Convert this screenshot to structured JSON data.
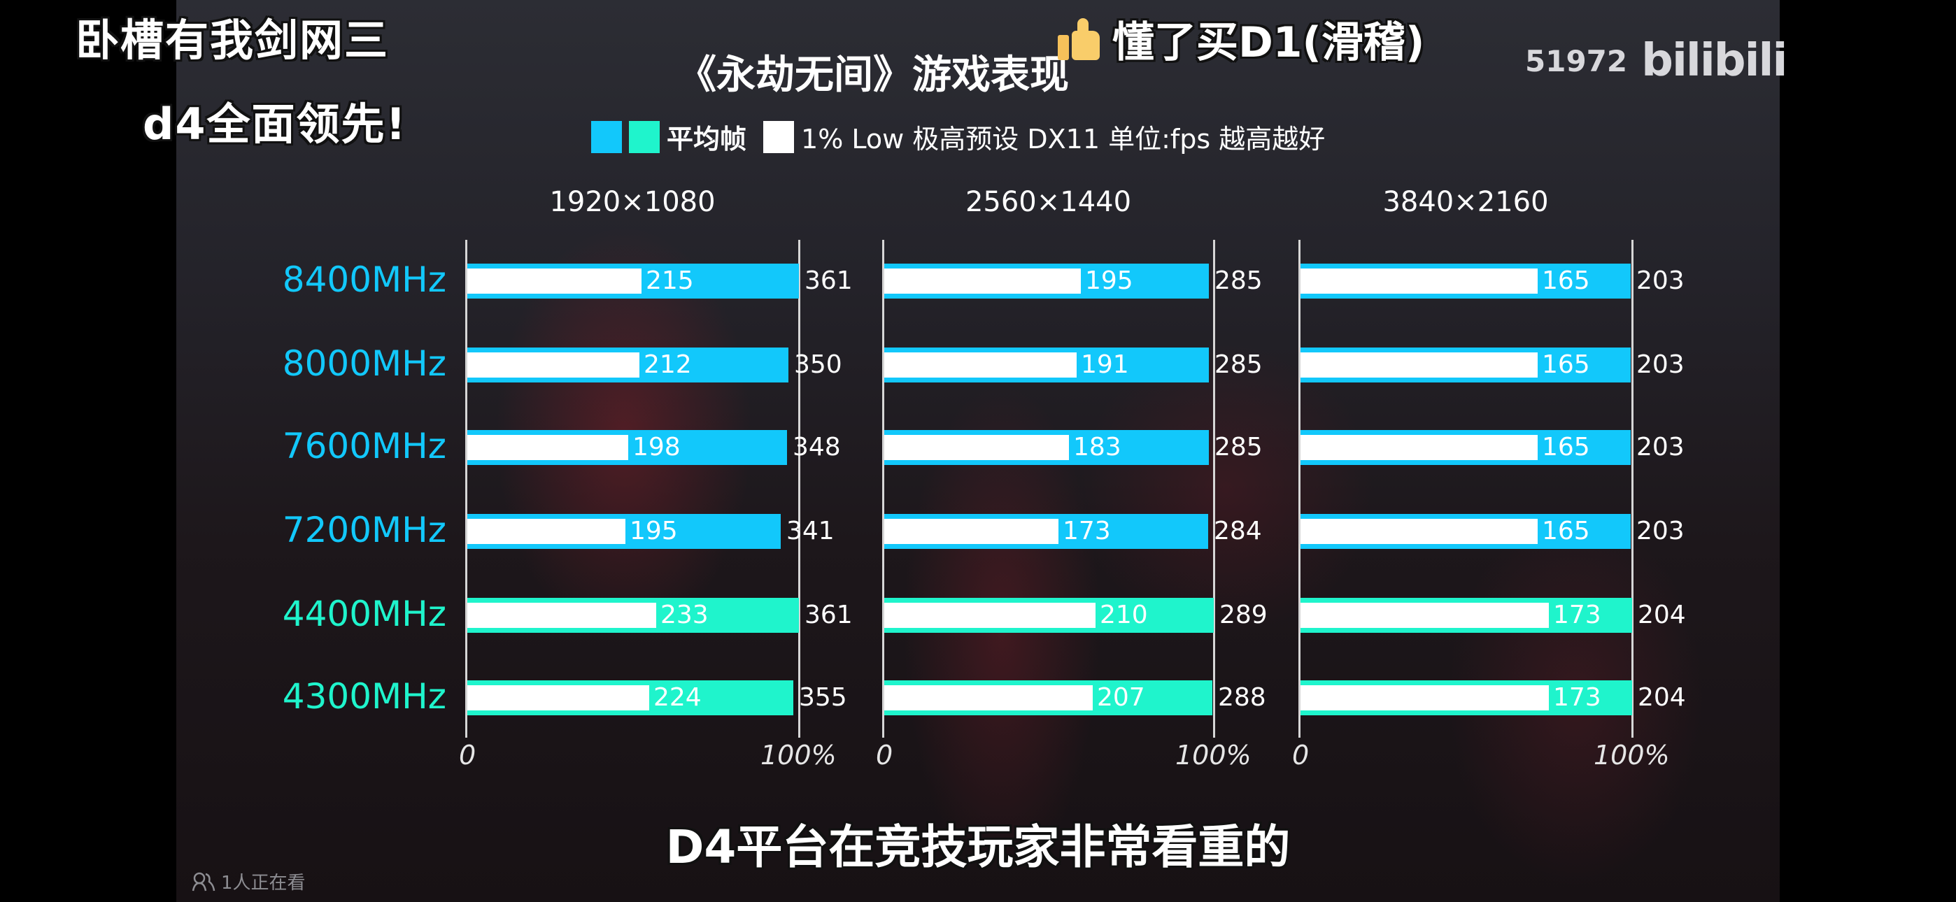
{
  "danmaku": {
    "left_line1": "卧槽有我剑网三",
    "left_line2": "d4全面领先!",
    "top_text": "懂了买D1(滑稽)",
    "top_icon": "thumbs-up-icon"
  },
  "watermark": {
    "count": "51972",
    "logo": "bilibili"
  },
  "caption": "D4平台在竞技玩家非常看重的",
  "watching": {
    "icon": "people-icon",
    "text": "1人正在看"
  },
  "colors": {
    "ddr5_blue": "#12c8fb",
    "ddr4_teal": "#1ff4cc",
    "low_white": "#ffffff"
  },
  "chart_data": {
    "type": "bar",
    "title": "《永劫无间》游戏表现",
    "legend": {
      "avg_label": "平均帧",
      "low_label": "1% Low 极高预设 DX11 单位:fps 越高越好"
    },
    "categories": [
      "8400MHz",
      "8000MHz",
      "7600MHz",
      "7200MHz",
      "4400MHz",
      "4300MHz"
    ],
    "category_colors": [
      "#12c8fb",
      "#12c8fb",
      "#12c8fb",
      "#12c8fb",
      "#1ff4cc",
      "#1ff4cc"
    ],
    "xlabel_ticks": [
      "0",
      "100%"
    ],
    "panels": [
      {
        "resolution": "1920×1080",
        "series": [
          {
            "name": "平均帧",
            "values": [
              361,
              350,
              348,
              341,
              361,
              355
            ]
          },
          {
            "name": "1% Low",
            "values": [
              215,
              212,
              198,
              195,
              233,
              224
            ]
          }
        ]
      },
      {
        "resolution": "2560×1440",
        "series": [
          {
            "name": "平均帧",
            "values": [
              285,
              285,
              285,
              284,
              289,
              288
            ]
          },
          {
            "name": "1% Low",
            "values": [
              195,
              191,
              183,
              173,
              210,
              207
            ]
          }
        ]
      },
      {
        "resolution": "3840×2160",
        "series": [
          {
            "name": "平均帧",
            "values": [
              203,
              203,
              203,
              203,
              204,
              204
            ]
          },
          {
            "name": "1% Low",
            "values": [
              165,
              165,
              165,
              165,
              173,
              173
            ]
          }
        ]
      }
    ]
  }
}
